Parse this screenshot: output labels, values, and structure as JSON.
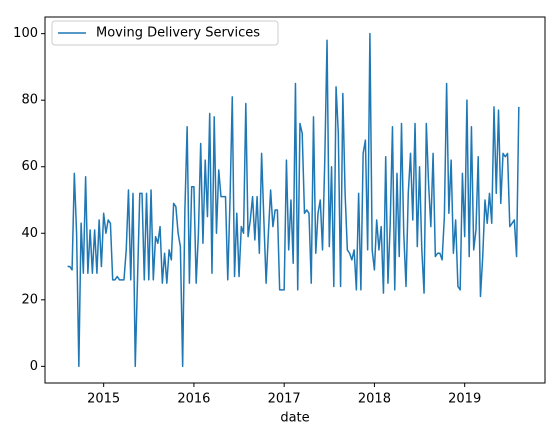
{
  "chart_data": {
    "type": "line",
    "x_label": "date",
    "xlim": [
      2014.35,
      2019.89
    ],
    "xticks": [
      2015,
      2016,
      2017,
      2018,
      2019
    ],
    "ylim": [
      -5,
      105
    ],
    "yticks": [
      0,
      20,
      40,
      60,
      80,
      100
    ],
    "legend": "upper left",
    "x": [
      2014.6,
      2014.625,
      2014.65,
      2014.675,
      2014.7,
      2014.725,
      2014.75,
      2014.775,
      2014.8,
      2014.825,
      2014.85,
      2014.875,
      2014.9,
      2014.925,
      2014.95,
      2014.975,
      2015,
      2015.025,
      2015.05,
      2015.075,
      2015.1,
      2015.125,
      2015.15,
      2015.175,
      2015.2,
      2015.225,
      2015.25,
      2015.275,
      2015.3,
      2015.325,
      2015.35,
      2015.375,
      2015.4,
      2015.425,
      2015.45,
      2015.475,
      2015.5,
      2015.525,
      2015.55,
      2015.575,
      2015.6,
      2015.625,
      2015.65,
      2015.675,
      2015.7,
      2015.725,
      2015.75,
      2015.775,
      2015.8,
      2015.825,
      2015.85,
      2015.875,
      2015.9,
      2015.925,
      2015.95,
      2015.975,
      2016,
      2016.025,
      2016.05,
      2016.075,
      2016.1,
      2016.125,
      2016.15,
      2016.175,
      2016.2,
      2016.225,
      2016.25,
      2016.275,
      2016.3,
      2016.325,
      2016.35,
      2016.375,
      2016.4,
      2016.425,
      2016.45,
      2016.475,
      2016.5,
      2016.525,
      2016.55,
      2016.575,
      2016.6,
      2016.625,
      2016.65,
      2016.675,
      2016.7,
      2016.725,
      2016.75,
      2016.775,
      2016.8,
      2016.825,
      2016.85,
      2016.875,
      2016.9,
      2016.925,
      2016.95,
      2016.975,
      2017,
      2017.025,
      2017.05,
      2017.075,
      2017.1,
      2017.125,
      2017.15,
      2017.175,
      2017.2,
      2017.225,
      2017.25,
      2017.275,
      2017.3,
      2017.325,
      2017.35,
      2017.375,
      2017.4,
      2017.425,
      2017.45,
      2017.475,
      2017.5,
      2017.525,
      2017.55,
      2017.575,
      2017.6,
      2017.625,
      2017.65,
      2017.675,
      2017.7,
      2017.725,
      2017.75,
      2017.775,
      2017.8,
      2017.825,
      2017.85,
      2017.875,
      2017.9,
      2017.925,
      2017.95,
      2017.975,
      2018,
      2018.025,
      2018.05,
      2018.075,
      2018.1,
      2018.125,
      2018.15,
      2018.175,
      2018.2,
      2018.225,
      2018.25,
      2018.275,
      2018.3,
      2018.325,
      2018.35,
      2018.375,
      2018.4,
      2018.425,
      2018.45,
      2018.475,
      2018.5,
      2018.525,
      2018.55,
      2018.575,
      2018.6,
      2018.625,
      2018.65,
      2018.675,
      2018.7,
      2018.725,
      2018.75,
      2018.775,
      2018.8,
      2018.825,
      2018.85,
      2018.875,
      2018.9,
      2018.925,
      2018.95,
      2018.975,
      2019,
      2019.025,
      2019.05,
      2019.075,
      2019.1,
      2019.125,
      2019.15,
      2019.175,
      2019.2,
      2019.225,
      2019.25,
      2019.275,
      2019.3,
      2019.325,
      2019.35,
      2019.375,
      2019.4,
      2019.425,
      2019.45,
      2019.475,
      2019.5,
      2019.525,
      2019.55,
      2019.575,
      2019.6
    ],
    "series": [
      {
        "name": "Moving Delivery Services",
        "color": "#1f77b4",
        "values": [
          30,
          30,
          29,
          58,
          40,
          0,
          43,
          28,
          57,
          28,
          41,
          28,
          41,
          28,
          44,
          30,
          46,
          40,
          44,
          43,
          26,
          26,
          27,
          26,
          26,
          26,
          35,
          53,
          26,
          52,
          0,
          26,
          52,
          52,
          26,
          52,
          26,
          53,
          26,
          39,
          37,
          42,
          25,
          34,
          25,
          35,
          32,
          49,
          48,
          40,
          36,
          0,
          47,
          72,
          25,
          54,
          54,
          25,
          40,
          67,
          37,
          62,
          45,
          76,
          28,
          75,
          40,
          59,
          51,
          51,
          51,
          26,
          50,
          81,
          27,
          46,
          27,
          42,
          40,
          79,
          39,
          44,
          51,
          38,
          51,
          34,
          64,
          44,
          25,
          40,
          53,
          42,
          47,
          47,
          23,
          23,
          23,
          62,
          35,
          50,
          31,
          85,
          23,
          73,
          70,
          46,
          47,
          46,
          25,
          75,
          34,
          46,
          50,
          35,
          62,
          98,
          36,
          60,
          24,
          84,
          70,
          24,
          82,
          52,
          35,
          34,
          32,
          35,
          23,
          52,
          23,
          64,
          68,
          35,
          100,
          35,
          29,
          44,
          35,
          42,
          22,
          63,
          25,
          43,
          72,
          23,
          58,
          33,
          73,
          40,
          24,
          52,
          64,
          44,
          73,
          36,
          60,
          35,
          22,
          73,
          55,
          42,
          64,
          33,
          34,
          34,
          32,
          45,
          85,
          46,
          62,
          34,
          44,
          24,
          23,
          58,
          39,
          80,
          33,
          72,
          35,
          41,
          63,
          21,
          33,
          50,
          43,
          52,
          43,
          78,
          52,
          77,
          49,
          64,
          63,
          64,
          42,
          43,
          44,
          33,
          78
        ]
      }
    ]
  }
}
